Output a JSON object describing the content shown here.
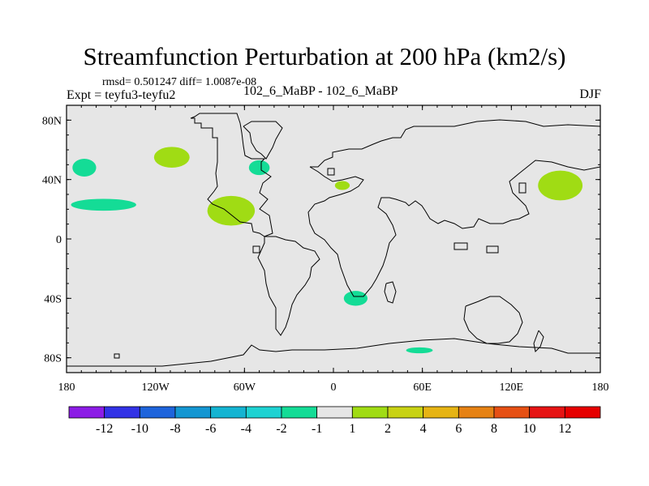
{
  "chart_data": {
    "type": "heatmap",
    "title": "Streamfunction Perturbation at 200 hPa (km2/s)",
    "subtitle": "rmsd= 0.501247 diff= 1.0087e-08",
    "left_label": "Expt = teyfu3-teyfu2",
    "center_label": "102_6_MaBP - 102_6_MaBP",
    "right_label": "DJF",
    "x_ticks": [
      {
        "value": -180,
        "label": "180"
      },
      {
        "value": -120,
        "label": "120W"
      },
      {
        "value": -60,
        "label": "60W"
      },
      {
        "value": 0,
        "label": "0"
      },
      {
        "value": 60,
        "label": "60E"
      },
      {
        "value": 120,
        "label": "120E"
      },
      {
        "value": 180,
        "label": "180"
      }
    ],
    "y_ticks": [
      {
        "value": 80,
        "label": "80N"
      },
      {
        "value": 40,
        "label": "40N"
      },
      {
        "value": 0,
        "label": "0"
      },
      {
        "value": -40,
        "label": "40S"
      },
      {
        "value": -80,
        "label": "80S"
      }
    ],
    "xlim": [
      -180,
      180
    ],
    "ylim": [
      -90,
      90
    ],
    "colorbar": {
      "levels": [
        "-12",
        "-10",
        "-8",
        "-6",
        "-4",
        "-2",
        "-1",
        "1",
        "2",
        "4",
        "6",
        "8",
        "10",
        "12"
      ],
      "colors": [
        "#8c1ce6",
        "#3232e6",
        "#1e64dc",
        "#1496d2",
        "#14b4d2",
        "#1ed2d2",
        "#14dc96",
        "#e6e6e6",
        "#a0dc14",
        "#c8d214",
        "#e6b414",
        "#e68214",
        "#e65014",
        "#e61414",
        "#e60000"
      ]
    },
    "regions": [
      {
        "name": "north-pacific-negative",
        "value_range": "-2 to -1",
        "lon": -155,
        "lat": 23,
        "rlon": 22,
        "rlat": 4
      },
      {
        "name": "north-pacific-small-negative",
        "value_range": "-2 to -1",
        "lon": -168,
        "lat": 48,
        "rlon": 8,
        "rlat": 6
      },
      {
        "name": "north-america-positive",
        "value_range": "1 to 2",
        "lon": -109,
        "lat": 55,
        "rlon": 12,
        "rlat": 7
      },
      {
        "name": "north-america-southeast-positive",
        "value_range": "1 to 2",
        "lon": -69,
        "lat": 19,
        "rlon": 16,
        "rlat": 10
      },
      {
        "name": "greenland-negative",
        "value_range": "-2 to -1",
        "lon": -50,
        "lat": 48,
        "rlon": 7,
        "rlat": 5
      },
      {
        "name": "mediterranean-positive",
        "value_range": "1 to 2",
        "lon": 6,
        "lat": 36,
        "rlon": 5,
        "rlat": 3
      },
      {
        "name": "east-asia-positive",
        "value_range": "1 to 2",
        "lon": 153,
        "lat": 36,
        "rlon": 15,
        "rlat": 10
      },
      {
        "name": "south-atlantic-negative",
        "value_range": "-2 to -1",
        "lon": 15,
        "lat": -40,
        "rlon": 8,
        "rlat": 5
      },
      {
        "name": "southern-ocean-negative",
        "value_range": "-2 to -1",
        "lon": 58,
        "lat": -75,
        "rlon": 9,
        "rlat": 2
      }
    ]
  }
}
